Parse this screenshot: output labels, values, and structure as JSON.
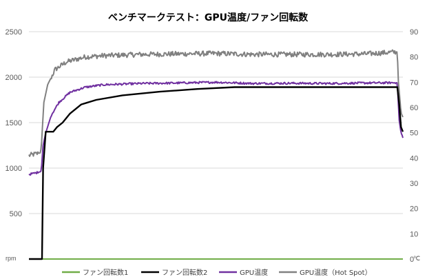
{
  "chart_data": {
    "type": "line",
    "title": "ベンチマークテスト：GPU温度/ファン回転数",
    "x_count": 1000,
    "y_left": {
      "unit": "rpm",
      "range": [
        0,
        2500
      ],
      "ticks": [
        "",
        "500",
        "1000",
        "1500",
        "2000",
        "2500"
      ]
    },
    "y_right": {
      "unit": "℃",
      "range": [
        0,
        90
      ],
      "ticks": [
        "0",
        "10",
        "20",
        "30",
        "40",
        "50",
        "60",
        "70",
        "80",
        "90"
      ]
    },
    "grid": "horizontal",
    "legend_position": "bottom",
    "legend": [
      "ファン回転数1",
      "ファン回転数2",
      "GPU温度",
      "GPU温度（Hot Spot）"
    ],
    "series": [
      {
        "name": "ファン回転数1",
        "axis": "left",
        "color": "#70ad47",
        "points": [
          [
            0,
            0
          ],
          [
            1000,
            0
          ]
        ]
      },
      {
        "name": "ファン回転数2",
        "axis": "left",
        "color": "#000000",
        "points": [
          [
            0,
            0
          ],
          [
            35,
            0
          ],
          [
            38,
            1000
          ],
          [
            45,
            1400
          ],
          [
            65,
            1400
          ],
          [
            75,
            1450
          ],
          [
            90,
            1500
          ],
          [
            110,
            1600
          ],
          [
            140,
            1700
          ],
          [
            180,
            1750
          ],
          [
            250,
            1800
          ],
          [
            350,
            1840
          ],
          [
            450,
            1870
          ],
          [
            550,
            1890
          ],
          [
            700,
            1890
          ],
          [
            900,
            1890
          ],
          [
            985,
            1890
          ],
          [
            990,
            1700
          ],
          [
            995,
            1450
          ],
          [
            1000,
            1400
          ],
          [
            1100,
            1400
          ]
        ]
      },
      {
        "name": "GPU温度",
        "axis": "right",
        "color": "#7030a0",
        "noise": 0.4,
        "points": [
          [
            0,
            33.5
          ],
          [
            30,
            34.5
          ],
          [
            33,
            35
          ],
          [
            38,
            45
          ],
          [
            45,
            50
          ],
          [
            60,
            57
          ],
          [
            80,
            62
          ],
          [
            110,
            66
          ],
          [
            150,
            68
          ],
          [
            200,
            69
          ],
          [
            300,
            69.5
          ],
          [
            400,
            69.7
          ],
          [
            500,
            70
          ],
          [
            600,
            69.5
          ],
          [
            700,
            69.6
          ],
          [
            800,
            69.5
          ],
          [
            900,
            69.7
          ],
          [
            985,
            69.8
          ],
          [
            990,
            55
          ],
          [
            995,
            50
          ],
          [
            1010,
            45
          ],
          [
            1030,
            40.5
          ],
          [
            1060,
            37
          ],
          [
            1100,
            35.5
          ]
        ]
      },
      {
        "name": "GPU温度（Hot Spot）",
        "axis": "right",
        "color": "#808080",
        "noise": 1.0,
        "points": [
          [
            0,
            41
          ],
          [
            30,
            42
          ],
          [
            33,
            44
          ],
          [
            40,
            62
          ],
          [
            50,
            69
          ],
          [
            70,
            75
          ],
          [
            100,
            78
          ],
          [
            150,
            80
          ],
          [
            200,
            80.5
          ],
          [
            300,
            81
          ],
          [
            400,
            81.2
          ],
          [
            500,
            81.4
          ],
          [
            600,
            81
          ],
          [
            700,
            81
          ],
          [
            800,
            81
          ],
          [
            900,
            81.2
          ],
          [
            985,
            82
          ],
          [
            988,
            70
          ],
          [
            995,
            58
          ],
          [
            1010,
            52
          ],
          [
            1040,
            47
          ],
          [
            1070,
            44.5
          ],
          [
            1100,
            43.5
          ]
        ]
      }
    ]
  }
}
